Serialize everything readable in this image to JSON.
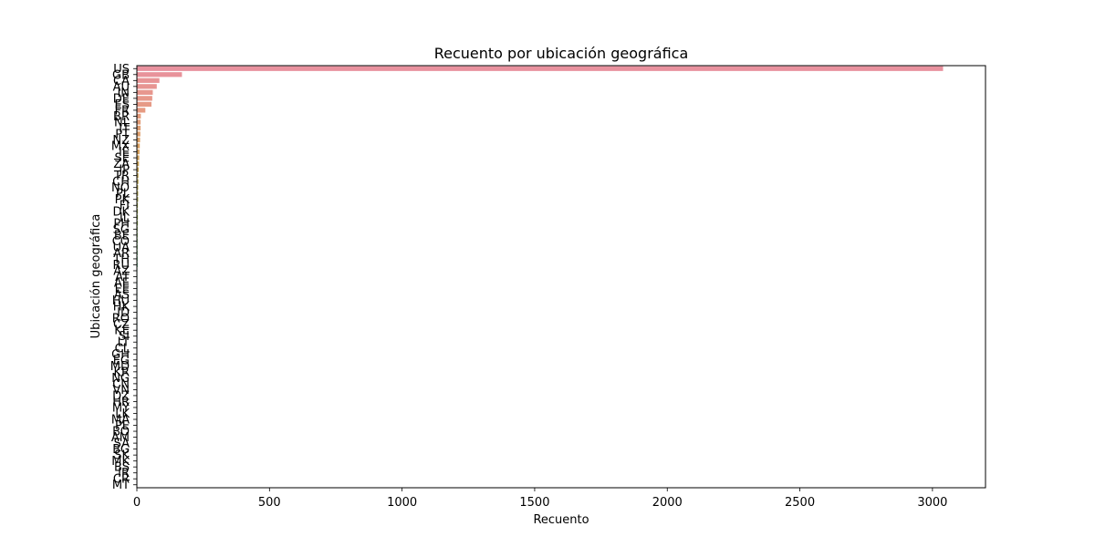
{
  "chart_data": {
    "type": "bar",
    "orientation": "horizontal",
    "title": "Recuento por ubicación geográfica",
    "xlabel": "Recuento",
    "ylabel": "Ubicación geográfica",
    "xlim": [
      0,
      3200
    ],
    "xticks": [
      0,
      500,
      1000,
      1500,
      2000,
      2500,
      3000
    ],
    "grid": false,
    "legend": "none",
    "categories": [
      "US",
      "GB",
      "CA",
      "AU",
      "IN",
      "DE",
      "ES",
      "FR",
      "BR",
      "NL",
      "IT",
      "PT",
      "NZ",
      "MX",
      "IE",
      "SE",
      "ZA",
      "JP",
      "TR",
      "CH",
      "NO",
      "PL",
      "PK",
      "FI",
      "DK",
      "IL",
      "PH",
      "SG",
      "BE",
      "CO",
      "UA",
      "AR",
      "TH",
      "RU",
      "AZ",
      "AT",
      "AE",
      "EE",
      "AS",
      "HU",
      "HK",
      "ID",
      "RO",
      "CZ",
      "KE",
      "SI",
      "LT",
      "CL",
      "GH",
      "EG",
      "MD",
      "KR",
      "NG",
      "CN",
      "VN",
      "DZ",
      "HR",
      "MY",
      "LK",
      "MA",
      "PE",
      "BO",
      "AM",
      "SA",
      "BG",
      "SK",
      "MK",
      "BS",
      "IR",
      "CR",
      "MT"
    ],
    "values": [
      3040,
      170,
      85,
      75,
      60,
      58,
      55,
      32,
      15,
      14,
      14,
      13,
      12,
      11,
      10,
      9,
      8,
      7,
      6,
      6,
      5,
      5,
      5,
      4,
      4,
      4,
      4,
      3,
      3,
      3,
      3,
      3,
      3,
      3,
      2,
      2,
      2,
      2,
      2,
      2,
      2,
      2,
      2,
      2,
      2,
      2,
      2,
      1,
      1,
      1,
      1,
      1,
      1,
      1,
      1,
      1,
      1,
      1,
      1,
      1,
      1,
      1,
      1,
      1,
      1,
      1,
      1,
      1,
      1,
      1,
      1
    ]
  }
}
